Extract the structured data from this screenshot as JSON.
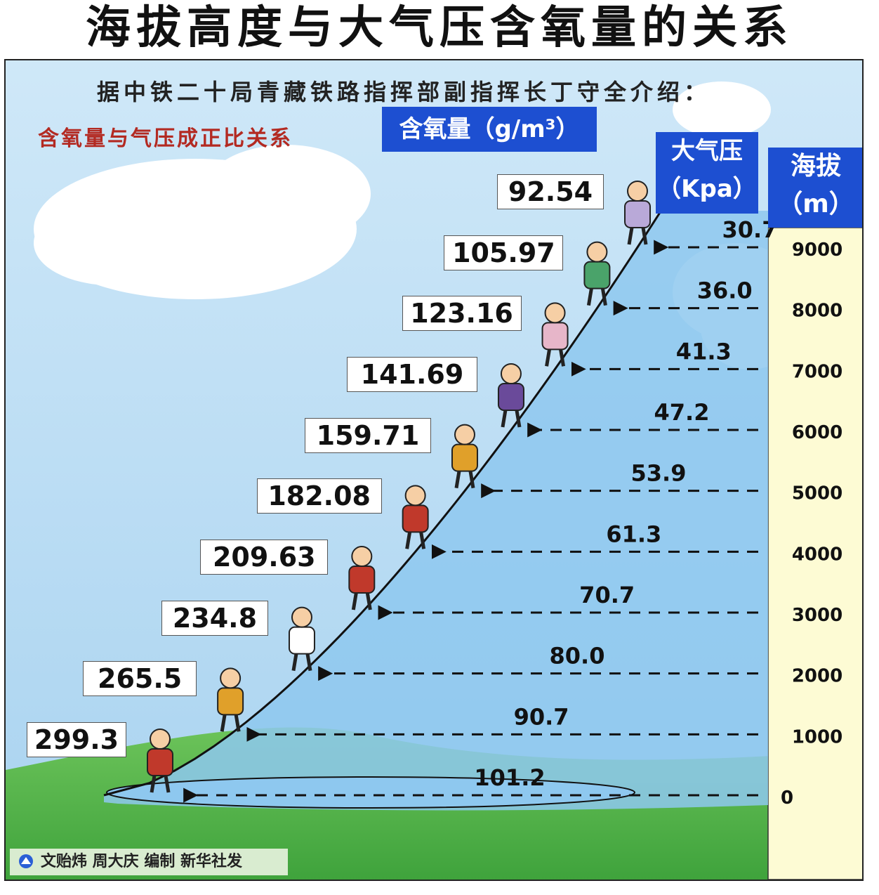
{
  "title": "海拔高度与大气压含氧量的关系",
  "subtitle": "据中铁二十局青藏铁路指挥部副指挥长丁守全介绍：",
  "note": "含氧量与气压成正比关系",
  "headers": {
    "oxygen_main": "含氧量",
    "oxygen_unit": "（g/m³）",
    "pressure_line1": "大气压",
    "pressure_line2": "（Kpa）",
    "altitude_line1": "海拔",
    "altitude_line2": "（m）"
  },
  "credit": "文贻炜 周大庆 编制 新华社发",
  "colors": {
    "sky": "#b8daf2",
    "cloud": "#ffffff",
    "ground": "#5cb84c",
    "header_blue": "#1d4fd1",
    "scale_bg": "#fdfbd4",
    "note_red": "#b32a22"
  },
  "chart_data": {
    "type": "table",
    "columns": [
      "海拔（m）",
      "大气压（Kpa）",
      "含氧量（g/m³）"
    ],
    "altitude_m": [
      0,
      1000,
      2000,
      3000,
      4000,
      5000,
      6000,
      7000,
      8000,
      9000
    ],
    "altitude_labels": [
      "0",
      "1000",
      "2000",
      "3000",
      "4000",
      "5000",
      "6000",
      "7000",
      "8000",
      "9000"
    ],
    "pressure_kpa": [
      "101.2",
      "90.7",
      "80.0",
      "70.7",
      "61.3",
      "53.9",
      "47.2",
      "41.3",
      "36.0",
      "30.7"
    ],
    "oxygen_g_m3": [
      "299.3",
      "265.5",
      "234.8",
      "209.63",
      "182.08",
      "159.71",
      "141.69",
      "123.16",
      "105.97",
      "92.54"
    ]
  }
}
